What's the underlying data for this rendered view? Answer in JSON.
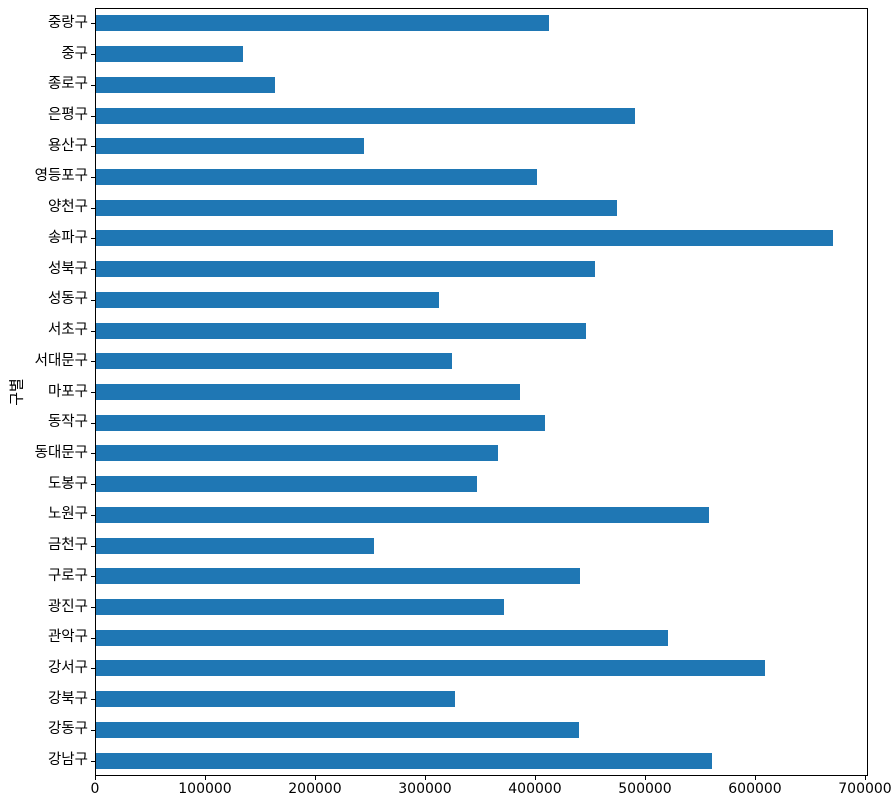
{
  "figure": {
    "background": "#ffffff",
    "spine_color": "#000000",
    "text_color": "#000000"
  },
  "chart_data": {
    "type": "bar",
    "orientation": "horizontal",
    "title": "",
    "xlabel": "",
    "ylabel": "구별",
    "bar_color": "#1f77b4",
    "grid": false,
    "legend": null,
    "xlim": [
      0,
      702000
    ],
    "x_ticks": [
      0,
      100000,
      200000,
      300000,
      400000,
      500000,
      600000,
      700000
    ],
    "x_tick_labels": [
      "0",
      "100000",
      "200000",
      "300000",
      "400000",
      "500000",
      "600000",
      "700000"
    ],
    "categories_top_to_bottom": [
      "중랑구",
      "중구",
      "종로구",
      "은평구",
      "용산구",
      "영등포구",
      "양천구",
      "송파구",
      "성북구",
      "성동구",
      "서초구",
      "서대문구",
      "마포구",
      "동작구",
      "동대문구",
      "도봉구",
      "노원구",
      "금천구",
      "구로구",
      "광진구",
      "관악구",
      "강서구",
      "강북구",
      "강동구",
      "강남구"
    ],
    "values_top_to_bottom": [
      412000,
      134000,
      163000,
      490000,
      244000,
      401000,
      474000,
      670000,
      454000,
      312000,
      445000,
      324000,
      385000,
      408000,
      365000,
      346000,
      557000,
      253000,
      440000,
      371000,
      520000,
      608000,
      326000,
      439000,
      560000
    ]
  }
}
